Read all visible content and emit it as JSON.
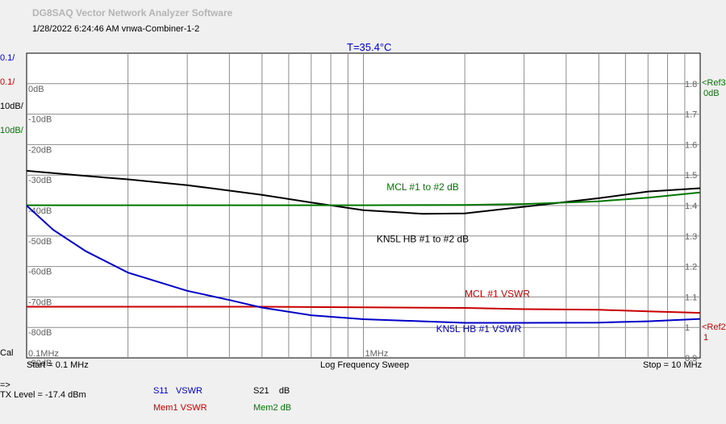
{
  "app_title": "DG8SAQ Vector Network Analyzer Software",
  "timestamp": "1/28/2022   6:24:46 AM    vnwa-Combiner-1-2",
  "temperature": "T=35.4°C",
  "left_scales": [
    {
      "text": "0.1/",
      "color": "#0000c8"
    },
    {
      "text": "0.1/",
      "color": "#c80000"
    },
    {
      "text": "10dB/",
      "color": "#000000"
    },
    {
      "text": "10dB/",
      "color": "#007800"
    }
  ],
  "right_refs": [
    {
      "text": "<Ref3",
      "color": "#007800"
    },
    {
      "text": "0dB",
      "color": "#007800"
    },
    {
      "text": "<Ref2",
      "color": "#c80000"
    },
    {
      "text": "1",
      "color": "#c80000"
    }
  ],
  "cal_label": "Cal",
  "sweep": {
    "start": "Start = 0.1 MHz",
    "mode": "Log Frequency Sweep",
    "stop": "Stop = 10 MHz"
  },
  "status": {
    "arrow": "=>",
    "tx_level": "TX Level = -17.4 dBm"
  },
  "legend": [
    {
      "param": "S11",
      "format": "VSWR",
      "color": "#0000c8"
    },
    {
      "param": "S21",
      "format": "dB",
      "color": "#000000"
    },
    {
      "param": "Mem1",
      "format": "VSWR",
      "color": "#c80000"
    },
    {
      "param": "Mem2",
      "format": "dB",
      "color": "#007800"
    }
  ],
  "chart_data": {
    "type": "line",
    "x_scale": "log",
    "xlim_mhz": [
      0.1,
      10
    ],
    "x_tick_labels": [
      "0.1MHz",
      "1MHz"
    ],
    "grid": true,
    "left_axis": {
      "unit": "dB",
      "ylim": [
        -90,
        10
      ],
      "tick_values": [
        0,
        -10,
        -20,
        -30,
        -40,
        -50,
        -60,
        -70,
        -80,
        -90
      ],
      "tick_labels": [
        "0dB",
        "-10dB",
        "-20dB",
        "-30dB",
        "-40dB",
        "-50dB",
        "-60dB",
        "-70dB",
        "-80dB",
        "-90dB"
      ]
    },
    "right_axis": {
      "unit": "VSWR",
      "ylim": [
        0.9,
        1.9
      ],
      "tick_values": [
        1.8,
        1.7,
        1.6,
        1.5,
        1.4,
        1.3,
        1.2,
        1.1,
        1.0,
        0.9
      ],
      "tick_labels": [
        "1.8",
        "1.7",
        "1.6",
        "1.5",
        "1.4",
        "1.3",
        "1.2",
        "1.1",
        "1",
        "0.9"
      ]
    },
    "series": [
      {
        "name": "KN5L HB #1 to #2 dB",
        "axis": "left",
        "color": "#000000",
        "label_at": {
          "x": 1.5,
          "y": -52
        },
        "x": [
          0.1,
          0.15,
          0.2,
          0.3,
          0.5,
          0.7,
          1,
          1.5,
          2,
          3,
          5,
          7,
          10
        ],
        "y": [
          -28.6,
          -30.3,
          -31.4,
          -33.3,
          -36.5,
          -39.0,
          -41.5,
          -42.7,
          -42.6,
          -40.4,
          -37.6,
          -35.4,
          -34.3
        ]
      },
      {
        "name": "MCL #1 to #2 dB",
        "axis": "left",
        "color": "#007800",
        "label_at": {
          "x": 1.5,
          "y": -35
        },
        "x": [
          0.1,
          0.5,
          1,
          2,
          3,
          5,
          7,
          10
        ],
        "y": [
          -39.9,
          -39.9,
          -39.9,
          -39.8,
          -39.5,
          -38.6,
          -37.4,
          -35.7
        ]
      },
      {
        "name": "MCL #1 VSWR",
        "axis": "right",
        "color": "#c80000",
        "label_at": {
          "x": 2.5,
          "y": 1.1
        },
        "x": [
          0.1,
          0.5,
          1,
          2,
          3,
          5,
          7,
          10
        ],
        "y": [
          1.068,
          1.068,
          1.066,
          1.064,
          1.06,
          1.058,
          1.053,
          1.048
        ]
      },
      {
        "name": "KN5L HB #1 VSWR",
        "axis": "right",
        "color": "#0000c8",
        "label_at": {
          "x": 2.2,
          "y": 0.985
        },
        "x": [
          0.1,
          0.12,
          0.15,
          0.2,
          0.3,
          0.4,
          0.5,
          0.7,
          1,
          1.5,
          2,
          3,
          5,
          7,
          10
        ],
        "y": [
          1.4,
          1.32,
          1.25,
          1.18,
          1.12,
          1.09,
          1.065,
          1.04,
          1.027,
          1.02,
          1.015,
          1.015,
          1.016,
          1.02,
          1.028
        ]
      }
    ]
  }
}
